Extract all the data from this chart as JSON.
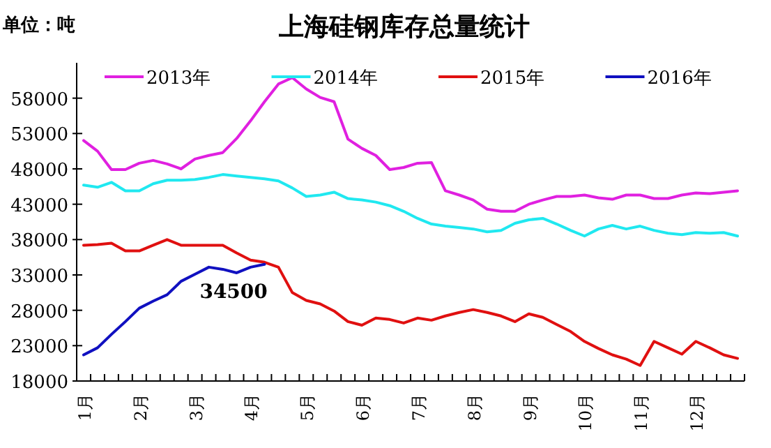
{
  "chart_data": {
    "type": "line",
    "title": "上海硅钢库存总量统计",
    "ylabel": "单位：吨",
    "categories": [
      "1月",
      null,
      null,
      null,
      "2月",
      null,
      null,
      null,
      "3月",
      null,
      null,
      null,
      "4月",
      null,
      null,
      null,
      "5月",
      null,
      null,
      null,
      "6月",
      null,
      null,
      null,
      "7月",
      null,
      null,
      null,
      "8月",
      null,
      null,
      null,
      "9月",
      null,
      null,
      null,
      "10月",
      null,
      null,
      null,
      "11月",
      null,
      null,
      null,
      "12月",
      null,
      null,
      null
    ],
    "ylim": [
      18000,
      63000
    ],
    "yticks": [
      18000,
      23000,
      28000,
      33000,
      38000,
      43000,
      48000,
      53000,
      58000
    ],
    "legend": "top",
    "grid": false,
    "marker": "none",
    "annotations": [
      {
        "text": "34500",
        "y": 34500
      }
    ],
    "series": [
      {
        "name": "2013年",
        "color": "#e020e0",
        "values": [
          52000,
          50500,
          47900,
          47900,
          48800,
          49200,
          48700,
          48000,
          49400,
          49900,
          50300,
          52300,
          54800,
          57500,
          60000,
          60900,
          59300,
          58100,
          57500,
          52200,
          50900,
          49900,
          47900,
          48200,
          48800,
          48900,
          44900,
          44300,
          43600,
          42300,
          42000,
          42000,
          43000,
          43600,
          44100,
          44100,
          44300,
          43900,
          43700,
          44300,
          44300,
          43800,
          43800,
          44300,
          44600,
          44500,
          44700,
          44900
        ]
      },
      {
        "name": "2014年",
        "color": "#20e8f0",
        "values": [
          45700,
          45400,
          46100,
          44900,
          44900,
          45900,
          46400,
          46400,
          46500,
          46800,
          47200,
          47000,
          46800,
          46600,
          46300,
          45300,
          44100,
          44300,
          44700,
          43800,
          43600,
          43300,
          42800,
          42000,
          41000,
          40200,
          39900,
          39700,
          39500,
          39100,
          39300,
          40300,
          40800,
          41000,
          40200,
          39300,
          38500,
          39500,
          40000,
          39500,
          39900,
          39300,
          38900,
          38700,
          39000,
          38900,
          39000,
          38500
        ]
      },
      {
        "name": "2015年",
        "color": "#e01010",
        "values": [
          37200,
          37300,
          37500,
          36400,
          36400,
          37200,
          38000,
          37200,
          37200,
          37200,
          37200,
          36100,
          35100,
          34800,
          34100,
          30500,
          29400,
          28900,
          27900,
          26400,
          25900,
          26900,
          26700,
          26200,
          26900,
          26600,
          27200,
          27700,
          28100,
          27700,
          27200,
          26400,
          27500,
          27000,
          26000,
          25000,
          23600,
          22600,
          21700,
          21100,
          20200,
          23600,
          22700,
          21800,
          23600,
          22700,
          21700,
          21200
        ]
      },
      {
        "name": "2016年",
        "color": "#1010c0",
        "values": [
          21700,
          22700,
          24600,
          26400,
          28300,
          29300,
          30200,
          32100,
          33100,
          34100,
          33800,
          33300,
          34100,
          34500,
          null,
          null,
          null,
          null,
          null,
          null,
          null,
          null,
          null,
          null,
          null,
          null,
          null,
          null,
          null,
          null,
          null,
          null,
          null,
          null,
          null,
          null,
          null,
          null,
          null,
          null,
          null,
          null,
          null,
          null,
          null,
          null,
          null,
          null
        ]
      }
    ]
  }
}
